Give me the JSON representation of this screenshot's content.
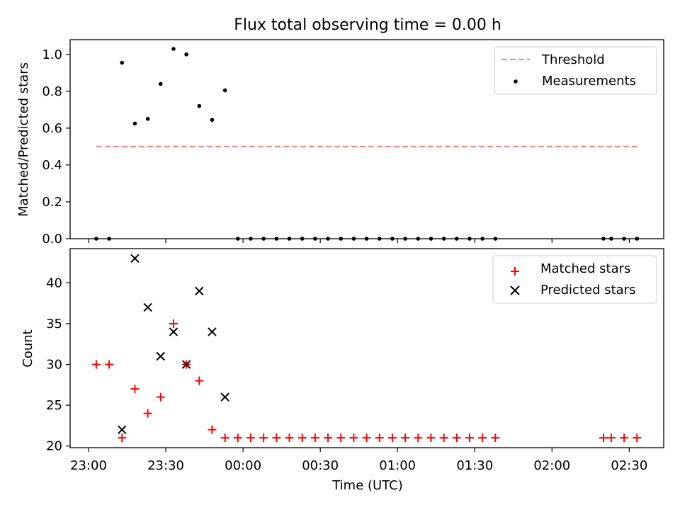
{
  "title": "Flux total observing time = 0.00 h",
  "colors": {
    "threshold": "#ff7f7f",
    "measurements": "#000000",
    "matched": "#ff0000",
    "predicted": "#000000"
  },
  "x_tick_labels": [
    "23:00",
    "23:30",
    "00:00",
    "00:30",
    "01:00",
    "01:30",
    "02:00",
    "02:30"
  ],
  "chart_data": [
    {
      "type": "scatter",
      "ylabel": "Matched/Predicted stars",
      "xlabel": "",
      "ylim": [
        0,
        1.08
      ],
      "y_ticks": [
        0.0,
        0.2,
        0.4,
        0.6,
        0.8,
        1.0
      ],
      "y_tick_labels": [
        "0.0",
        "0.2",
        "0.4",
        "0.6",
        "0.8",
        "1.0"
      ],
      "legend": {
        "position": "top-right",
        "entries": [
          "Threshold",
          "Measurements"
        ]
      },
      "threshold": {
        "name": "Threshold",
        "y": 0.5,
        "x_start": "23:03",
        "x_end": "02:33",
        "style": "dashed"
      },
      "series": [
        {
          "name": "Measurements",
          "marker": "dot",
          "x": [
            "23:03",
            "23:08",
            "23:13",
            "23:18",
            "23:23",
            "23:28",
            "23:33",
            "23:38",
            "23:43",
            "23:48",
            "23:53",
            "23:58",
            "00:03",
            "00:08",
            "00:13",
            "00:18",
            "00:23",
            "00:28",
            "00:33",
            "00:38",
            "00:43",
            "00:48",
            "00:53",
            "00:58",
            "01:03",
            "01:08",
            "01:13",
            "01:18",
            "01:23",
            "01:28",
            "01:33",
            "01:38",
            "02:20",
            "02:23",
            "02:28",
            "02:33"
          ],
          "y": [
            0.0,
            0.0,
            0.955,
            0.625,
            0.65,
            0.84,
            1.03,
            1.0,
            0.72,
            0.645,
            0.805,
            0.0,
            0.0,
            0.0,
            0.0,
            0.0,
            0.0,
            0.0,
            0.0,
            0.0,
            0.0,
            0.0,
            0.0,
            0.0,
            0.0,
            0.0,
            0.0,
            0.0,
            0.0,
            0.0,
            0.0,
            0.0,
            0.0,
            0.0,
            0.0,
            0.0
          ]
        }
      ]
    },
    {
      "type": "scatter",
      "ylabel": "Count",
      "xlabel": "Time (UTC)",
      "ylim": [
        19.8,
        44.2
      ],
      "y_ticks": [
        20,
        25,
        30,
        35,
        40
      ],
      "y_tick_labels": [
        "20",
        "25",
        "30",
        "35",
        "40"
      ],
      "legend": {
        "position": "top-right",
        "entries": [
          "Matched stars",
          "Predicted stars"
        ]
      },
      "series": [
        {
          "name": "Matched stars",
          "marker": "plus",
          "x": [
            "23:03",
            "23:08",
            "23:13",
            "23:18",
            "23:23",
            "23:28",
            "23:33",
            "23:38",
            "23:43",
            "23:48",
            "23:53",
            "23:58",
            "00:03",
            "00:08",
            "00:13",
            "00:18",
            "00:23",
            "00:28",
            "00:33",
            "00:38",
            "00:43",
            "00:48",
            "00:53",
            "00:58",
            "01:03",
            "01:08",
            "01:13",
            "01:18",
            "01:23",
            "01:28",
            "01:33",
            "01:38",
            "02:20",
            "02:23",
            "02:28",
            "02:33"
          ],
          "y": [
            30,
            30,
            21,
            27,
            24,
            26,
            35,
            30,
            28,
            22,
            21,
            21,
            21,
            21,
            21,
            21,
            21,
            21,
            21,
            21,
            21,
            21,
            21,
            21,
            21,
            21,
            21,
            21,
            21,
            21,
            21,
            21,
            21,
            21,
            21,
            21
          ]
        },
        {
          "name": "Predicted stars",
          "marker": "x",
          "x": [
            "23:13",
            "23:18",
            "23:23",
            "23:28",
            "23:33",
            "23:38",
            "23:43",
            "23:48",
            "23:53"
          ],
          "y": [
            22,
            43,
            37,
            31,
            34,
            30,
            39,
            34,
            26
          ]
        }
      ]
    }
  ]
}
